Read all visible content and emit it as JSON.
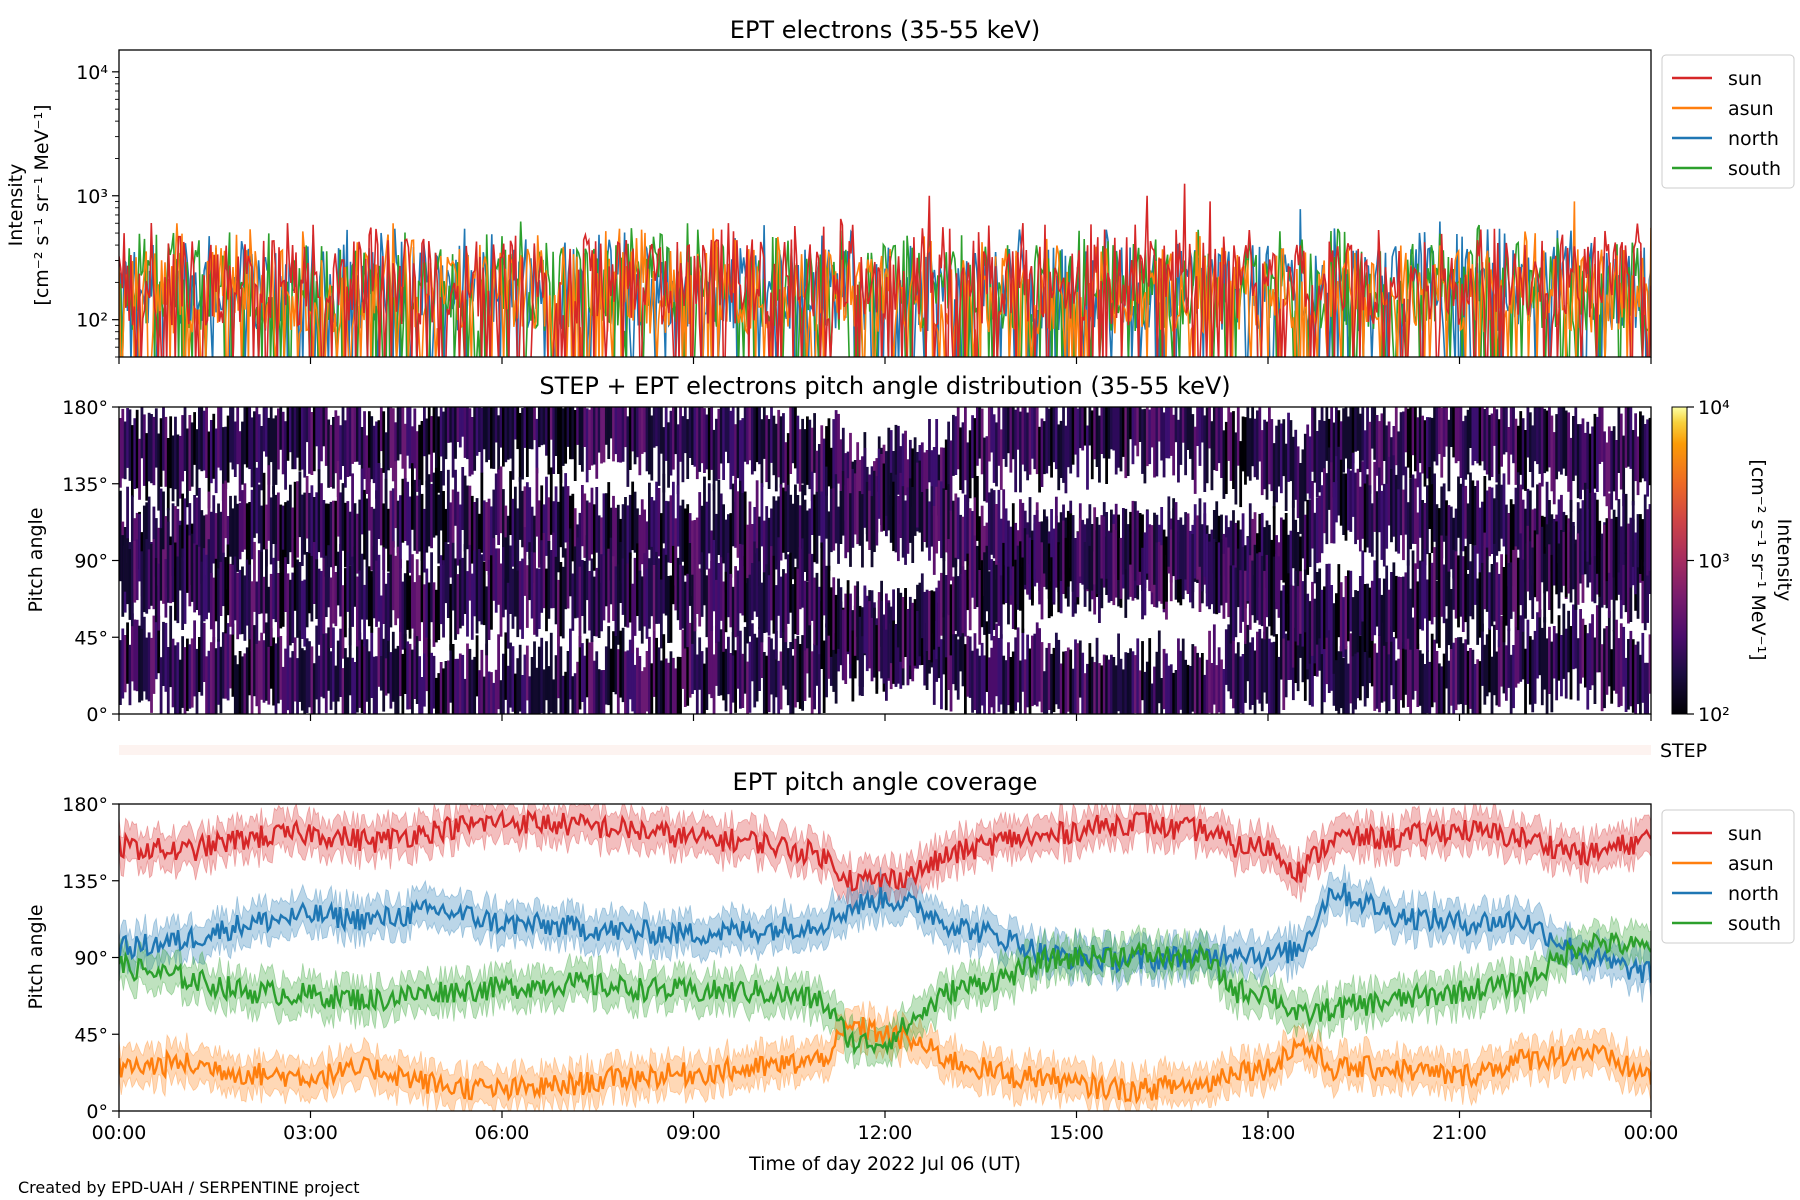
{
  "figure": {
    "footer": "Created by EPD-UAH / SERPENTINE project",
    "xlabel": "Time of day 2022 Jul 06 (UT)",
    "xticks": [
      "00:00",
      "03:00",
      "06:00",
      "09:00",
      "12:00",
      "15:00",
      "18:00",
      "21:00",
      "00:00"
    ]
  },
  "colors": {
    "sun": "#d62728",
    "asun": "#ff7f0e",
    "north": "#1f77b4",
    "south": "#2ca02c",
    "step_band": "#fdf3f0"
  },
  "chart_data": [
    {
      "type": "line",
      "title": "EPT electrons (35-55 keV)",
      "xlabel": "",
      "ylabel_lines": [
        "Intensity",
        "[cm⁻² s⁻¹ sr⁻¹ MeV⁻¹]"
      ],
      "yscale": "log",
      "ylim": [
        50,
        15000
      ],
      "yticks": [
        {
          "value": 100,
          "label": "10²"
        },
        {
          "value": 1000,
          "label": "10³"
        },
        {
          "value": 10000,
          "label": "10⁴"
        }
      ],
      "xlim_hours": [
        0,
        24
      ],
      "legend_position": "outside-right-top",
      "series": [
        {
          "name": "sun",
          "typical": 200,
          "noise_low": 50,
          "noise_high": 550,
          "peaks": [
            {
              "x_hours": 12.7,
              "y": 1000
            },
            {
              "x_hours": 16.7,
              "y": 1250
            },
            {
              "x_hours": 16.1,
              "y": 1000
            },
            {
              "x_hours": 17.1,
              "y": 900
            },
            {
              "x_hours": 11.3,
              "y": 650
            }
          ]
        },
        {
          "name": "asun",
          "typical": 170,
          "noise_low": 50,
          "noise_high": 500,
          "peaks": [
            {
              "x_hours": 22.8,
              "y": 900
            },
            {
              "x_hours": 0.9,
              "y": 600
            },
            {
              "x_hours": 4.3,
              "y": 600
            }
          ]
        },
        {
          "name": "north",
          "typical": 180,
          "noise_low": 50,
          "noise_high": 500,
          "peaks": [
            {
              "x_hours": 18.5,
              "y": 780
            },
            {
              "x_hours": 20.7,
              "y": 620
            },
            {
              "x_hours": 10.1,
              "y": 580
            }
          ]
        },
        {
          "name": "south",
          "typical": 180,
          "noise_low": 50,
          "noise_high": 500,
          "peaks": [
            {
              "x_hours": 6.3,
              "y": 620
            },
            {
              "x_hours": 8.9,
              "y": 600
            },
            {
              "x_hours": 21.3,
              "y": 580
            }
          ]
        }
      ]
    },
    {
      "type": "heatmap",
      "title": "STEP + EPT electrons pitch angle distribution (35-55 keV)",
      "ylabel": "Pitch angle",
      "ylim": [
        0,
        180
      ],
      "yticks": [
        {
          "value": 0,
          "label": "0°"
        },
        {
          "value": 45,
          "label": "45°"
        },
        {
          "value": 90,
          "label": "90°"
        },
        {
          "value": 135,
          "label": "135°"
        },
        {
          "value": 180,
          "label": "180°"
        }
      ],
      "xlim_hours": [
        0,
        24
      ],
      "colorbar": {
        "label_lines": [
          "Intensity",
          "[cm⁻² s⁻¹ sr⁻¹ MeV⁻¹]"
        ],
        "scale": "log",
        "range": [
          100,
          10000
        ],
        "ticks": [
          {
            "value": 100,
            "label": "10²"
          },
          {
            "value": 1000,
            "label": "10³"
          },
          {
            "value": 10000,
            "label": "10⁴"
          }
        ],
        "colormap": "inferno"
      },
      "step_band_label": "STEP",
      "note_source": "cells filled where EPT telescopes (sun, asun, north, south) cover the pitch angle; white = no coverage"
    },
    {
      "type": "area",
      "title": "EPT pitch angle coverage",
      "ylabel": "Pitch angle",
      "ylim": [
        0,
        180
      ],
      "yticks": [
        {
          "value": 0,
          "label": "0°"
        },
        {
          "value": 45,
          "label": "45°"
        },
        {
          "value": 90,
          "label": "90°"
        },
        {
          "value": 135,
          "label": "135°"
        },
        {
          "value": 180,
          "label": "180°"
        }
      ],
      "xlim_hours": [
        0,
        24
      ],
      "legend_position": "outside-right-top",
      "band_half_width_deg": 10,
      "series": [
        {
          "name": "sun",
          "x_hours": [
            0,
            1,
            2,
            3,
            4,
            5,
            6,
            7,
            8,
            9,
            10,
            11,
            11.5,
            12,
            12.5,
            13,
            14,
            14.5,
            15,
            16,
            16.5,
            17,
            17.5,
            18,
            18.5,
            19,
            20,
            21,
            22,
            23,
            24
          ],
          "values": [
            155,
            152,
            160,
            163,
            158,
            165,
            170,
            168,
            165,
            160,
            158,
            150,
            135,
            135,
            140,
            150,
            160,
            160,
            165,
            170,
            165,
            165,
            155,
            155,
            140,
            160,
            160,
            165,
            160,
            150,
            160
          ]
        },
        {
          "name": "asun",
          "x_hours": [
            0,
            1,
            2,
            3,
            4,
            5,
            6,
            7,
            8,
            9,
            10,
            11,
            11.5,
            12,
            12.5,
            13,
            14,
            14.5,
            15,
            16,
            16.5,
            17,
            17.5,
            18,
            18.5,
            19,
            20,
            21,
            22,
            23,
            24
          ],
          "values": [
            25,
            28,
            22,
            20,
            25,
            15,
            12,
            15,
            20,
            22,
            25,
            30,
            50,
            45,
            40,
            30,
            20,
            20,
            15,
            12,
            15,
            15,
            25,
            25,
            40,
            25,
            25,
            20,
            30,
            35,
            20
          ]
        },
        {
          "name": "north",
          "x_hours": [
            0,
            1,
            2,
            3,
            4,
            5,
            6,
            7,
            8,
            9,
            10,
            11,
            11.5,
            12,
            12.5,
            13,
            14,
            14.5,
            15,
            16,
            16.5,
            17,
            17.5,
            18,
            18.5,
            19,
            20,
            21,
            22,
            23,
            24
          ],
          "values": [
            95,
            100,
            110,
            115,
            112,
            118,
            110,
            108,
            105,
            104,
            106,
            110,
            120,
            125,
            120,
            110,
            100,
            92,
            90,
            88,
            90,
            90,
            95,
            90,
            95,
            130,
            115,
            110,
            112,
            90,
            80
          ]
        },
        {
          "name": "south",
          "x_hours": [
            0,
            1,
            2,
            3,
            4,
            5,
            6,
            7,
            8,
            9,
            10,
            11,
            11.5,
            12,
            12.5,
            13,
            14,
            14.5,
            15,
            16,
            16.5,
            17,
            17.5,
            18,
            18.5,
            19,
            20,
            21,
            22,
            23,
            24
          ],
          "values": [
            85,
            78,
            70,
            68,
            65,
            70,
            72,
            75,
            72,
            70,
            70,
            65,
            40,
            40,
            55,
            70,
            80,
            88,
            90,
            92,
            90,
            90,
            70,
            70,
            55,
            60,
            65,
            70,
            75,
            100,
            95
          ]
        }
      ]
    }
  ]
}
